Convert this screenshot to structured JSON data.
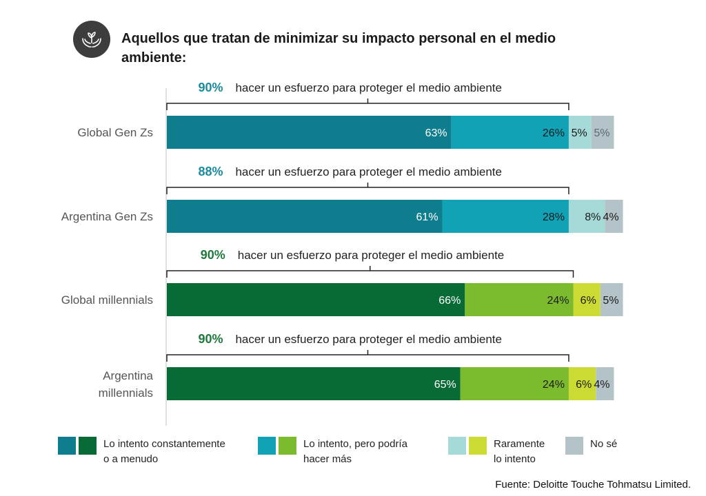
{
  "title": "Aquellos que tratan de minimizar su impacto personal en el medio ambiente:",
  "source": "Fuente: Deloitte Touche Tohmatsu Limited.",
  "colors": {
    "teal": [
      "#0e7e8f",
      "#11a2b6",
      "#a6dad8",
      "#b3c3c8"
    ],
    "green": [
      "#086b36",
      "#7dbb2e",
      "#ccdb33",
      "#b3c3c8"
    ],
    "teal_text": "#1a8c9c",
    "green_text": "#1e7a3c"
  },
  "chart_data": {
    "type": "bar",
    "orientation": "horizontal",
    "stacked": true,
    "categories": [
      "Global Gen Zs",
      "Argentina Gen Zs",
      "Global millennials",
      "Argentina millennials"
    ],
    "series": [
      {
        "name": "Lo intento constantemente o a menudo",
        "values": [
          63,
          61,
          66,
          65
        ],
        "labels": [
          "63%",
          "61%",
          "66%",
          "65%"
        ]
      },
      {
        "name": "Lo intento, pero podría hacer más",
        "values": [
          26,
          28,
          24,
          24
        ],
        "labels": [
          "26%",
          "28%",
          "24%",
          "24%"
        ]
      },
      {
        "name": "Raramente lo intento",
        "values": [
          5,
          8,
          6,
          6
        ],
        "labels": [
          "5%",
          "8%",
          "6%",
          "6%"
        ]
      },
      {
        "name": "No sé",
        "values": [
          5,
          4,
          5,
          4
        ],
        "labels": [
          "5%",
          "4%",
          "5%",
          "4%"
        ]
      }
    ],
    "annotations": [
      {
        "value": "90%",
        "text": "hacer un esfuerzo para proteger el medio ambiente"
      },
      {
        "value": "88%",
        "text": "hacer un esfuerzo para proteger el medio ambiente"
      },
      {
        "value": "90%",
        "text": "hacer un esfuerzo para proteger el medio ambiente"
      },
      {
        "value": "90%",
        "text": "hacer un esfuerzo para proteger el medio ambiente"
      }
    ],
    "legend": [
      {
        "label": "Lo intento constantemente\no a menudo"
      },
      {
        "label": "Lo intento, pero podría\nhacer más"
      },
      {
        "label": "Raramente\nlo intento"
      },
      {
        "label": "No sé"
      }
    ]
  }
}
